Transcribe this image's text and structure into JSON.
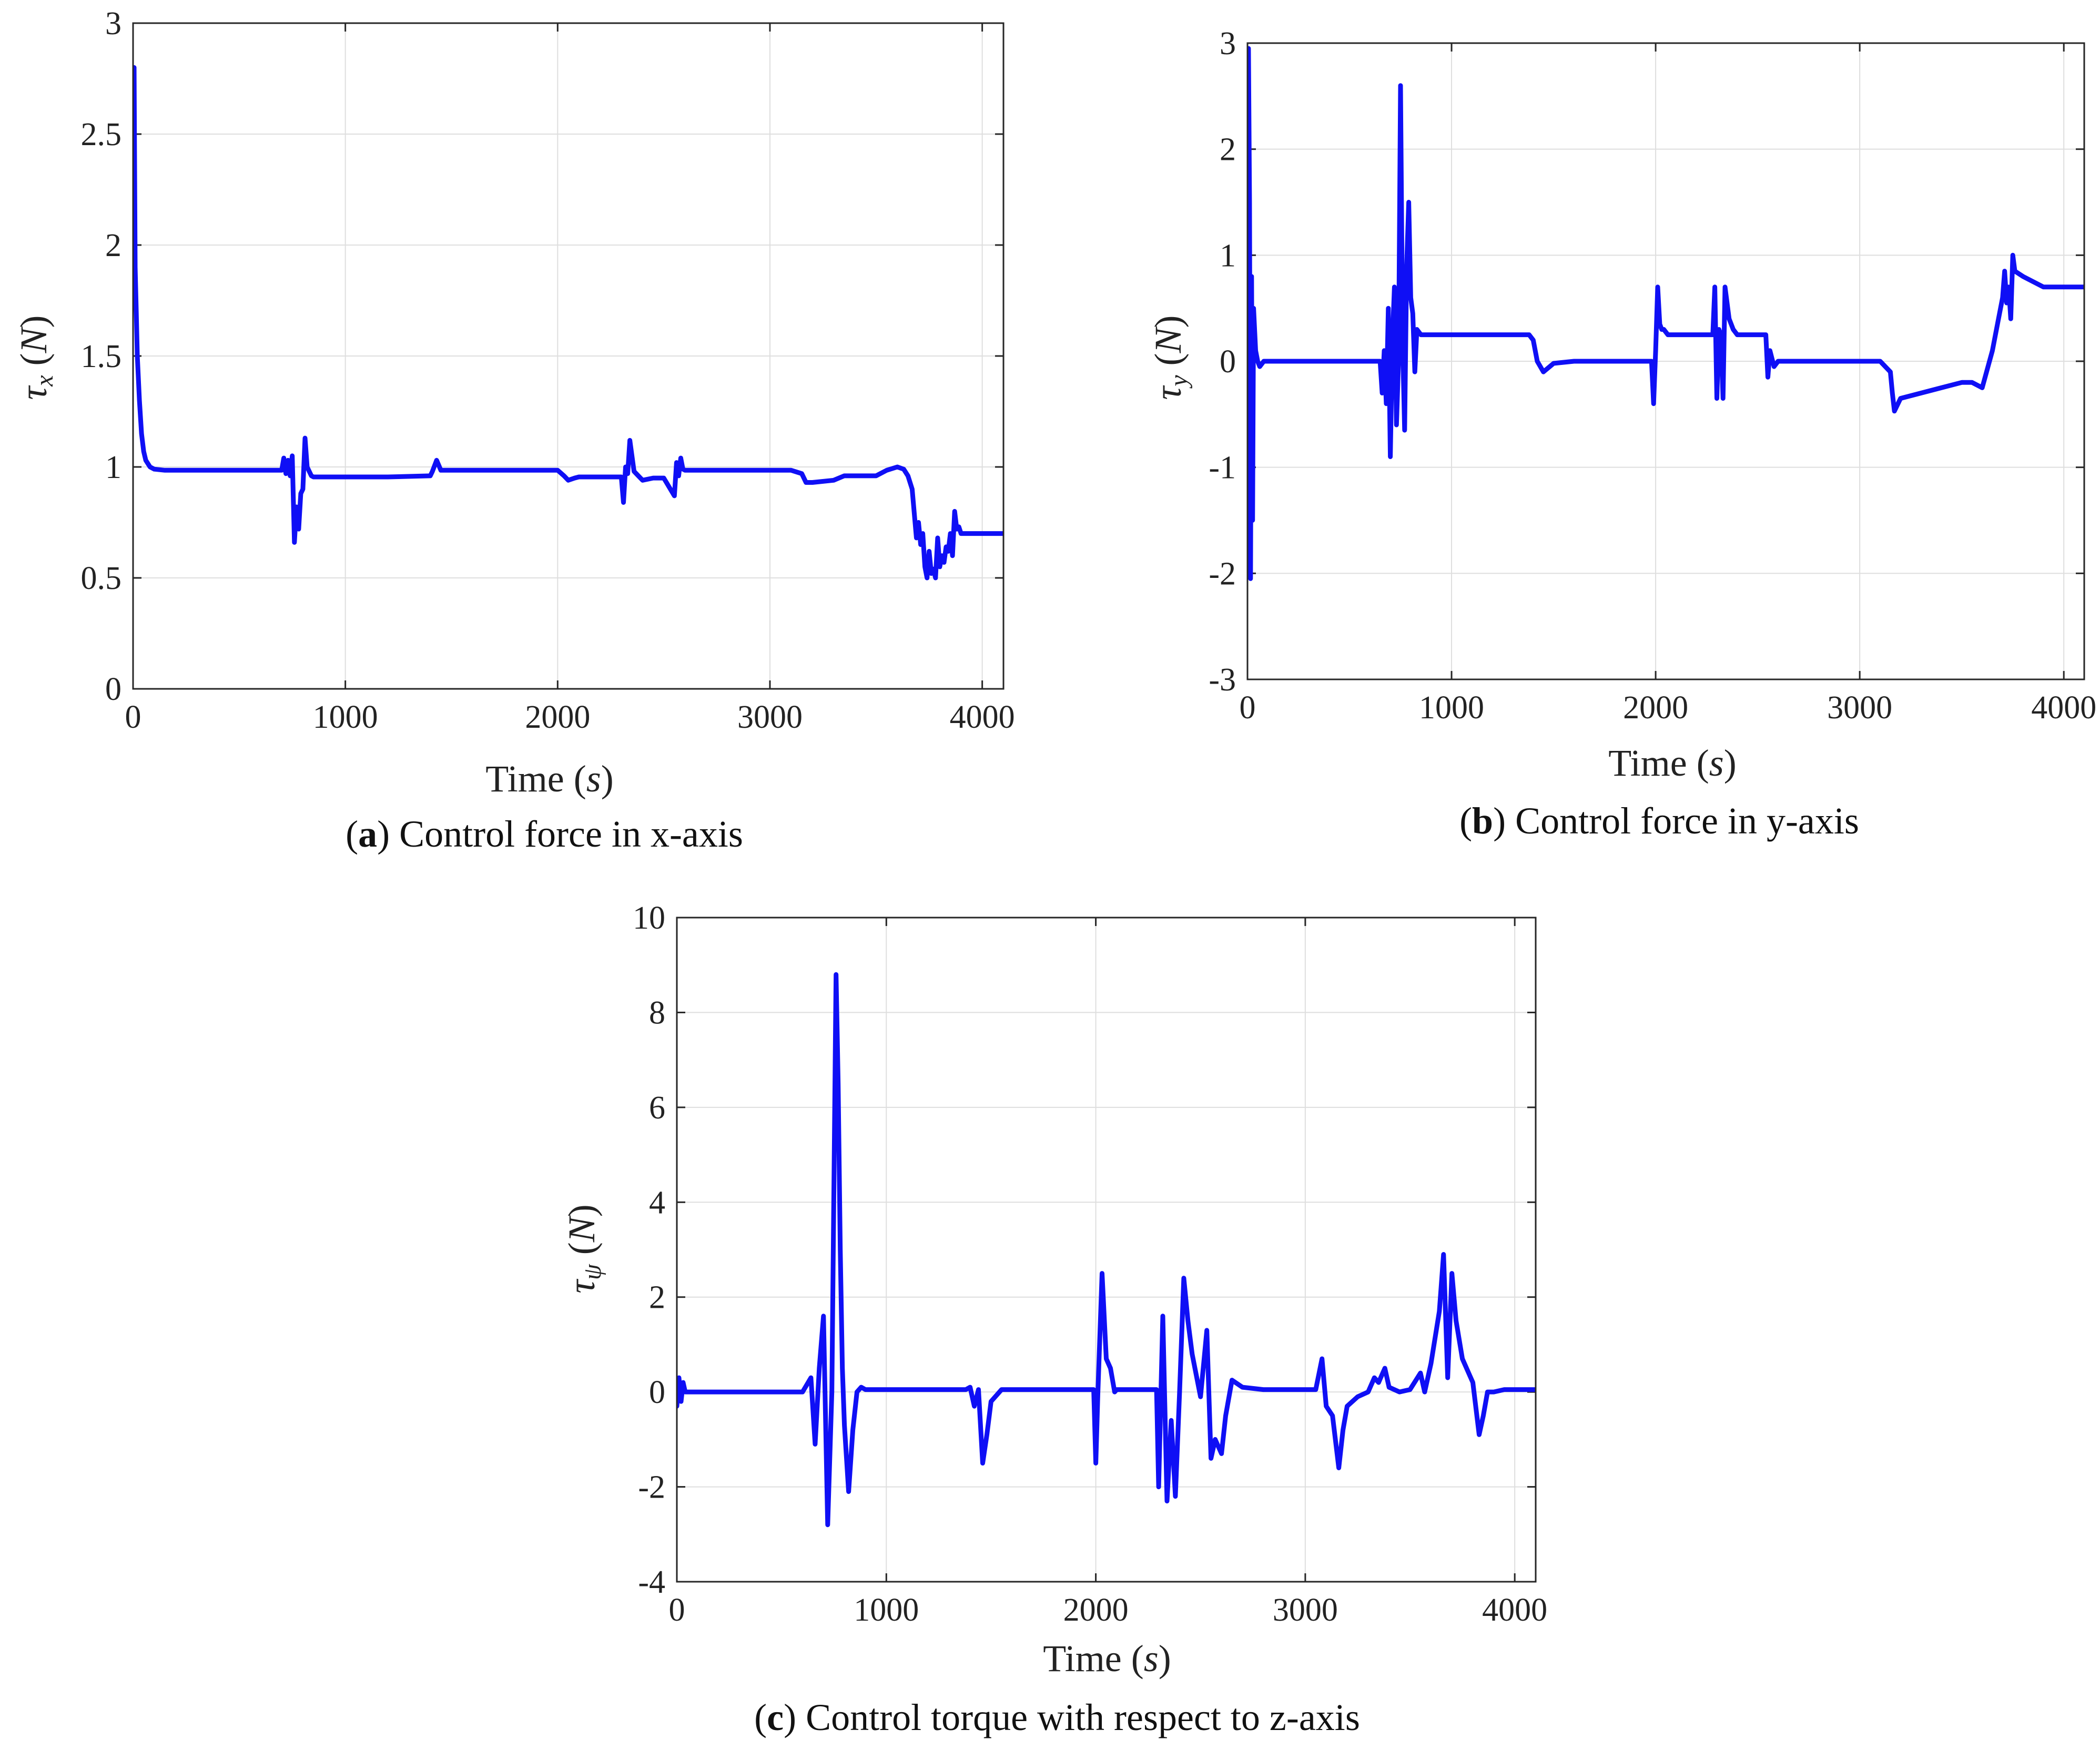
{
  "figure": {
    "series_color": "#0f0ff5"
  },
  "chart_data": [
    {
      "id": "a",
      "type": "line",
      "caption_letter": "a",
      "caption_text": "Control force in x-axis",
      "xlabel_text": "Time",
      "xlabel_unit": "s",
      "ylabel_symbol": "τ",
      "ylabel_sub": "x",
      "ylabel_unit": "N",
      "xlim": [
        0,
        4100
      ],
      "ylim": [
        0,
        3
      ],
      "xticks": [
        0,
        1000,
        2000,
        3000,
        4000
      ],
      "xtick_labels": [
        "0",
        "1000",
        "2000",
        "3000",
        "4000"
      ],
      "yticks": [
        0,
        0.5,
        1,
        1.5,
        2,
        2.5,
        3
      ],
      "ytick_labels": [
        "0",
        "0.5",
        "1",
        "1.5",
        "2",
        "2.5",
        "3"
      ],
      "grid": true,
      "series": [
        {
          "name": "tau_x",
          "x": [
            0,
            5,
            10,
            15,
            20,
            30,
            40,
            50,
            60,
            80,
            100,
            150,
            200,
            400,
            600,
            700,
            710,
            720,
            730,
            740,
            750,
            760,
            770,
            780,
            790,
            800,
            810,
            820,
            830,
            840,
            850,
            900,
            1000,
            1200,
            1400,
            1410,
            1430,
            1450,
            1500,
            1800,
            2000,
            2030,
            2050,
            2080,
            2100,
            2200,
            2300,
            2310,
            2320,
            2330,
            2340,
            2350,
            2360,
            2380,
            2400,
            2450,
            2500,
            2550,
            2560,
            2570,
            2580,
            2590,
            2600,
            2700,
            2900,
            3100,
            3150,
            3170,
            3200,
            3300,
            3350,
            3400,
            3500,
            3550,
            3600,
            3630,
            3650,
            3670,
            3690,
            3700,
            3710,
            3720,
            3730,
            3740,
            3750,
            3760,
            3770,
            3780,
            3790,
            3800,
            3810,
            3820,
            3830,
            3840,
            3850,
            3860,
            3870,
            3880,
            3890,
            3900,
            3950,
            4000,
            4100
          ],
          "y": [
            1.82,
            2.8,
            1.9,
            1.7,
            1.5,
            1.3,
            1.15,
            1.07,
            1.03,
            1.0,
            0.99,
            0.985,
            0.985,
            0.985,
            0.985,
            0.985,
            1.04,
            0.97,
            1.03,
            0.96,
            1.05,
            0.66,
            0.82,
            0.72,
            0.88,
            0.9,
            1.13,
            1.0,
            0.98,
            0.96,
            0.955,
            0.955,
            0.955,
            0.955,
            0.96,
            0.98,
            1.03,
            0.985,
            0.985,
            0.985,
            0.985,
            0.96,
            0.94,
            0.95,
            0.955,
            0.955,
            0.955,
            0.84,
            1.0,
            0.97,
            1.12,
            1.05,
            0.98,
            0.96,
            0.94,
            0.95,
            0.95,
            0.87,
            1.02,
            0.96,
            1.04,
            0.99,
            0.985,
            0.985,
            0.985,
            0.985,
            0.97,
            0.93,
            0.93,
            0.94,
            0.96,
            0.96,
            0.96,
            0.985,
            1.0,
            0.99,
            0.96,
            0.9,
            0.68,
            0.75,
            0.65,
            0.7,
            0.55,
            0.5,
            0.62,
            0.52,
            0.54,
            0.5,
            0.68,
            0.55,
            0.6,
            0.57,
            0.64,
            0.62,
            0.7,
            0.6,
            0.8,
            0.72,
            0.73,
            0.7,
            0.7,
            0.7,
            0.7
          ]
        }
      ]
    },
    {
      "id": "b",
      "type": "line",
      "caption_letter": "b",
      "caption_text": "Control force in y-axis",
      "xlabel_text": "Time",
      "xlabel_unit": "s",
      "ylabel_symbol": "τ",
      "ylabel_sub": "y",
      "ylabel_unit": "N",
      "xlim": [
        0,
        4100
      ],
      "ylim": [
        -3,
        3
      ],
      "xticks": [
        0,
        1000,
        2000,
        3000,
        4000
      ],
      "xtick_labels": [
        "0",
        "1000",
        "2000",
        "3000",
        "4000"
      ],
      "yticks": [
        -3,
        -2,
        -1,
        0,
        1,
        2,
        3
      ],
      "ytick_labels": [
        "-3",
        "-2",
        "-1",
        "0",
        "1",
        "2",
        "3"
      ],
      "grid": true,
      "series": [
        {
          "name": "tau_y",
          "x": [
            0,
            5,
            10,
            15,
            20,
            25,
            30,
            40,
            50,
            60,
            80,
            100,
            200,
            400,
            600,
            650,
            660,
            670,
            680,
            690,
            700,
            710,
            720,
            730,
            740,
            750,
            760,
            770,
            780,
            790,
            800,
            810,
            820,
            830,
            850,
            900,
            1000,
            1200,
            1380,
            1400,
            1420,
            1450,
            1500,
            1600,
            1800,
            1980,
            1990,
            2000,
            2010,
            2020,
            2030,
            2040,
            2060,
            2100,
            2200,
            2280,
            2290,
            2300,
            2310,
            2320,
            2330,
            2340,
            2360,
            2380,
            2400,
            2420,
            2450,
            2500,
            2540,
            2550,
            2560,
            2580,
            2600,
            2700,
            2900,
            3000,
            3050,
            3100,
            3150,
            3160,
            3170,
            3200,
            3300,
            3400,
            3500,
            3550,
            3600,
            3650,
            3680,
            3700,
            3710,
            3720,
            3730,
            3740,
            3750,
            3760,
            3800,
            3850,
            3900,
            4000,
            4100
          ],
          "y": [
            0.3,
            2.95,
            1.5,
            -2.05,
            0.8,
            -1.5,
            0.5,
            0.1,
            0.0,
            -0.05,
            0.0,
            0.0,
            0.0,
            0.0,
            0.0,
            0.0,
            -0.3,
            0.1,
            -0.4,
            0.5,
            -0.9,
            0.2,
            0.7,
            -0.6,
            0.0,
            2.6,
            0.2,
            -0.65,
            0.9,
            1.5,
            0.6,
            0.45,
            -0.1,
            0.3,
            0.25,
            0.25,
            0.25,
            0.25,
            0.25,
            0.2,
            0.0,
            -0.1,
            -0.02,
            0.0,
            0.0,
            0.0,
            -0.4,
            0.1,
            0.7,
            0.35,
            0.3,
            0.3,
            0.25,
            0.25,
            0.25,
            0.25,
            0.7,
            -0.35,
            0.3,
            0.25,
            -0.35,
            0.7,
            0.4,
            0.3,
            0.25,
            0.25,
            0.25,
            0.25,
            0.25,
            -0.15,
            0.1,
            -0.05,
            0.0,
            0.0,
            0.0,
            0.0,
            0.0,
            0.0,
            -0.1,
            -0.3,
            -0.47,
            -0.35,
            -0.3,
            -0.25,
            -0.2,
            -0.2,
            -0.25,
            0.1,
            0.4,
            0.6,
            0.85,
            0.55,
            0.7,
            0.4,
            1.0,
            0.85,
            0.8,
            0.75,
            0.7,
            0.7,
            0.7
          ]
        }
      ]
    },
    {
      "id": "c",
      "type": "line",
      "caption_letter": "c",
      "caption_text": "Control torque with respect to z-axis",
      "xlabel_text": "Time",
      "xlabel_unit": "s",
      "ylabel_symbol": "τ",
      "ylabel_sub": "ψ",
      "ylabel_unit": "N",
      "xlim": [
        0,
        4100
      ],
      "ylim": [
        -4,
        10
      ],
      "xticks": [
        0,
        1000,
        2000,
        3000,
        4000
      ],
      "xtick_labels": [
        "0",
        "1000",
        "2000",
        "3000",
        "4000"
      ],
      "yticks": [
        -4,
        -2,
        0,
        2,
        4,
        6,
        8,
        10
      ],
      "ytick_labels": [
        "-4",
        "-2",
        "0",
        "2",
        "4",
        "6",
        "8",
        "10"
      ],
      "grid": true,
      "series": [
        {
          "name": "tau_psi",
          "x": [
            0,
            10,
            20,
            30,
            40,
            60,
            100,
            300,
            600,
            640,
            660,
            680,
            700,
            720,
            740,
            760,
            770,
            780,
            790,
            800,
            820,
            840,
            860,
            880,
            900,
            1000,
            1200,
            1380,
            1400,
            1420,
            1440,
            1460,
            1480,
            1500,
            1550,
            1700,
            1900,
            1990,
            2000,
            2010,
            2030,
            2050,
            2070,
            2090,
            2100,
            2200,
            2290,
            2300,
            2320,
            2340,
            2360,
            2380,
            2400,
            2420,
            2440,
            2460,
            2500,
            2530,
            2550,
            2570,
            2600,
            2620,
            2650,
            2700,
            2800,
            2950,
            3050,
            3080,
            3100,
            3130,
            3160,
            3180,
            3200,
            3250,
            3300,
            3330,
            3350,
            3380,
            3400,
            3450,
            3500,
            3550,
            3570,
            3600,
            3640,
            3660,
            3680,
            3700,
            3720,
            3750,
            3800,
            3830,
            3850,
            3870,
            3900,
            3950,
            4000,
            4100
          ],
          "y": [
            -0.3,
            0.3,
            -0.2,
            0.2,
            0.0,
            0.0,
            0.0,
            0.0,
            0.0,
            0.3,
            -1.1,
            0.5,
            1.6,
            -2.8,
            0.0,
            8.8,
            6.5,
            3.0,
            0.5,
            -0.7,
            -2.1,
            -0.8,
            0.0,
            0.1,
            0.05,
            0.05,
            0.05,
            0.05,
            0.1,
            -0.3,
            0.05,
            -1.5,
            -0.9,
            -0.2,
            0.05,
            0.05,
            0.05,
            0.05,
            -1.5,
            0.0,
            2.5,
            0.7,
            0.5,
            0.0,
            0.05,
            0.05,
            0.05,
            -2.0,
            1.6,
            -2.3,
            -0.6,
            -2.2,
            0.0,
            2.4,
            1.5,
            0.8,
            -0.1,
            1.3,
            -1.4,
            -1.0,
            -1.3,
            -0.5,
            0.25,
            0.1,
            0.05,
            0.05,
            0.05,
            0.7,
            -0.3,
            -0.5,
            -1.6,
            -0.8,
            -0.3,
            -0.1,
            0.0,
            0.3,
            0.2,
            0.5,
            0.1,
            0.0,
            0.05,
            0.4,
            0.0,
            0.6,
            1.7,
            2.9,
            0.3,
            2.5,
            1.5,
            0.7,
            0.2,
            -0.9,
            -0.5,
            0.0,
            0.0,
            0.05,
            0.05,
            0.05
          ]
        }
      ]
    }
  ]
}
